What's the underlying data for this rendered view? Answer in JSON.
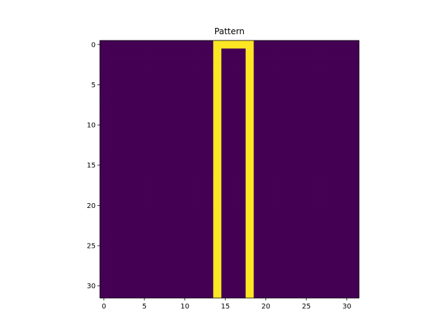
{
  "chart_data": {
    "type": "heatmap",
    "title": "Pattern",
    "xlabel": "",
    "ylabel": "",
    "xlim": [
      -0.5,
      31.5
    ],
    "ylim": [
      31.5,
      -0.5
    ],
    "x_ticks": [
      0,
      5,
      10,
      15,
      20,
      25,
      30
    ],
    "y_ticks": [
      0,
      5,
      10,
      15,
      20,
      25,
      30
    ],
    "colormap": "viridis",
    "colors": {
      "low": "#440154",
      "high": "#fde725"
    },
    "grid": false,
    "rows": [
      "00000000000000111110000000000000",
      "00000000000000100010000000000000",
      "00000000000000100010000000000000",
      "00000000000000100010000000000000",
      "00000000000000100010000000000000",
      "00000000000000100010000000000000",
      "00000000000000100010000000000000",
      "00000000000000100010000000000000",
      "00000000000000100010000000000000",
      "00000000000000100010000000000000",
      "00000000000000100010000000000000",
      "00000000000000100010000000000000",
      "00000000000000100010000000000000",
      "00000000000000100010000000000000",
      "00000000000000100010000000000000",
      "00000000000000100010000000000000",
      "00000000000000100010000000000000",
      "00000000000000100010000000000000",
      "00000000000000100010000000000000",
      "00000000000000100010000000000000",
      "00000000000000100010000000000000",
      "00000000000000100010000000000000",
      "00000000000000100010000000000000",
      "00000000000000100010000000000000",
      "00000000000000100010000000000000",
      "00000000000000100010000000000000",
      "00000000000000100010000000000000",
      "00000000000000100010000000000000",
      "00000000000000100010000000000000",
      "00000000000000100010000000000000",
      "00000000000000100010000000000000",
      "00000000000000100010000000000000"
    ]
  }
}
